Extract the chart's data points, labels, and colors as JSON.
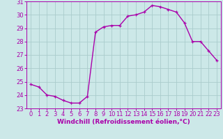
{
  "x": [
    0,
    1,
    2,
    3,
    4,
    5,
    6,
    7,
    8,
    9,
    10,
    11,
    12,
    13,
    14,
    15,
    16,
    17,
    18,
    19,
    20,
    21,
    22,
    23
  ],
  "y": [
    24.8,
    24.6,
    24.0,
    23.9,
    23.6,
    23.4,
    23.4,
    23.9,
    28.7,
    29.1,
    29.2,
    29.2,
    29.9,
    30.0,
    30.2,
    30.7,
    30.6,
    30.4,
    30.2,
    29.4,
    28.0,
    28.0,
    27.3,
    26.6
  ],
  "line_color": "#aa00aa",
  "marker": "+",
  "marker_size": 3.5,
  "linewidth": 1.0,
  "bg_color": "#cce8e8",
  "grid_color": "#aacccc",
  "xlabel": "Windchill (Refroidissement éolien,°C)",
  "xlabel_fontsize": 6.5,
  "tick_fontsize": 6.0,
  "xlim": [
    -0.5,
    23.5
  ],
  "ylim": [
    23,
    31
  ],
  "yticks": [
    23,
    24,
    25,
    26,
    27,
    28,
    29,
    30,
    31
  ],
  "xticks": [
    0,
    1,
    2,
    3,
    4,
    5,
    6,
    7,
    8,
    9,
    10,
    11,
    12,
    13,
    14,
    15,
    16,
    17,
    18,
    19,
    20,
    21,
    22,
    23
  ]
}
